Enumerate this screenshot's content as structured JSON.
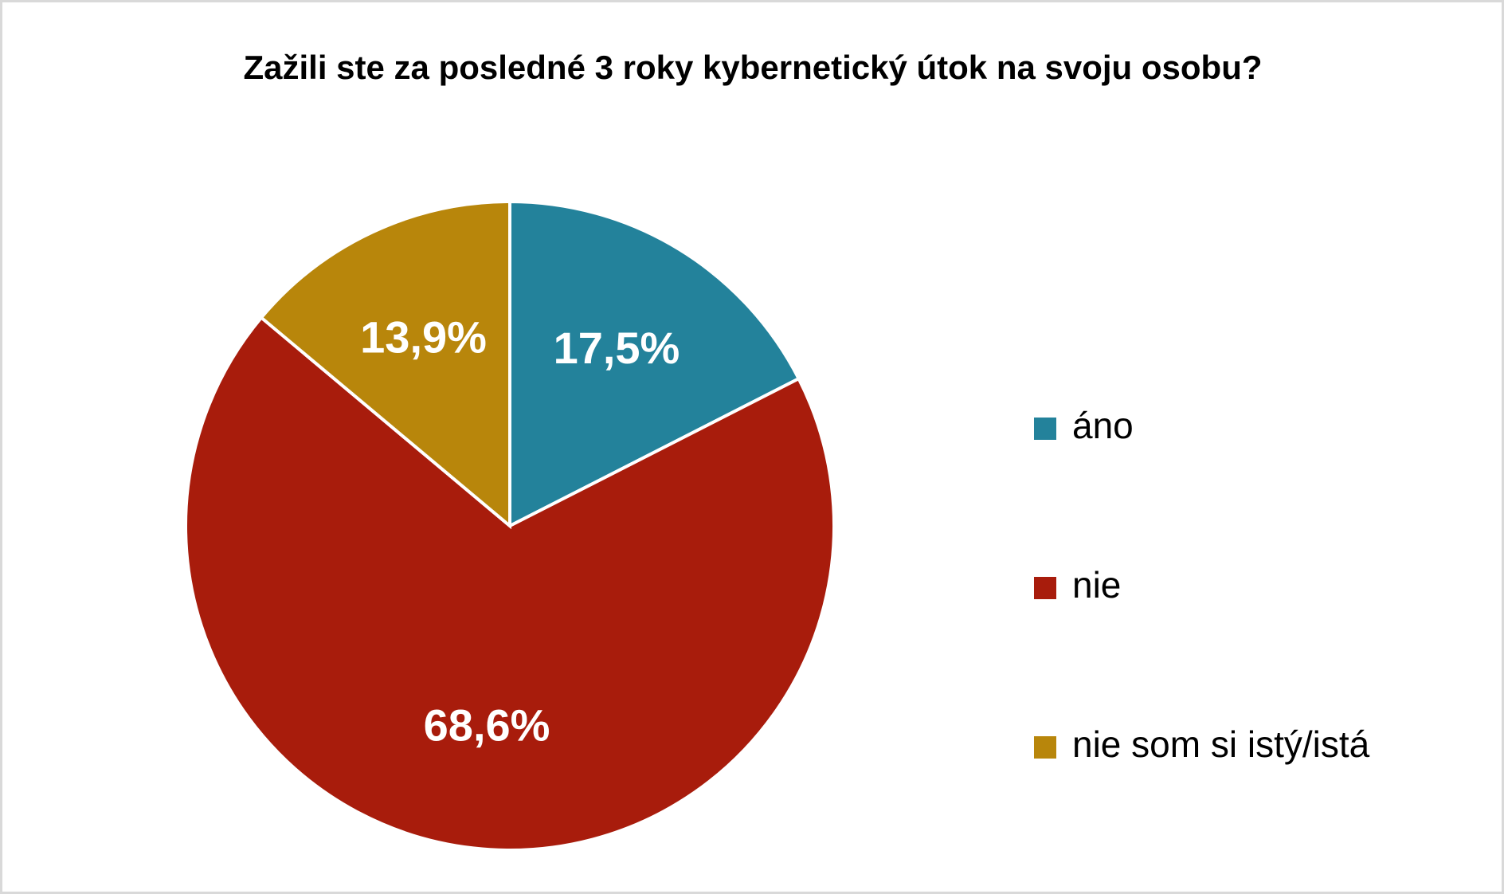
{
  "chart_data": {
    "type": "pie",
    "title": "Zažili ste za posledné 3 roky kybernetický útok na svoju osobu?",
    "categories": [
      "áno",
      "nie",
      "nie som si istý/istá"
    ],
    "values": [
      17.5,
      68.6,
      13.9
    ],
    "value_labels": [
      "17,5%",
      "68,6%",
      "13,9%"
    ],
    "colors": [
      "#23829b",
      "#a81c0c",
      "#b8860b"
    ],
    "legend": "right"
  }
}
